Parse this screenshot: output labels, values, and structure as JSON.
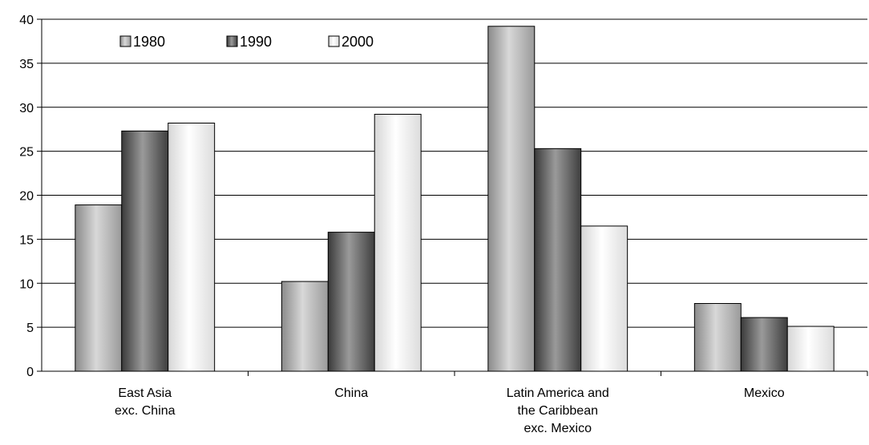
{
  "chart_data": {
    "type": "bar",
    "title": "",
    "xlabel": "",
    "ylabel": "",
    "ylim": [
      0,
      40
    ],
    "yticks": [
      0,
      5,
      10,
      15,
      20,
      25,
      30,
      35,
      40
    ],
    "grid": true,
    "legend_position": "top-left",
    "categories": [
      [
        "East Asia",
        "exc. China"
      ],
      [
        "China"
      ],
      [
        "Latin America and",
        "the Caribbean",
        "exc. Mexico"
      ],
      [
        "Mexico"
      ]
    ],
    "series": [
      {
        "name": "1980",
        "values": [
          18.9,
          10.2,
          39.2,
          7.7
        ],
        "color": "#b0b0b0"
      },
      {
        "name": "1990",
        "values": [
          27.3,
          15.8,
          25.3,
          6.1
        ],
        "color": "#707070"
      },
      {
        "name": "2000",
        "values": [
          28.2,
          29.2,
          16.5,
          5.1
        ],
        "color": "#f0f0f0"
      }
    ]
  }
}
